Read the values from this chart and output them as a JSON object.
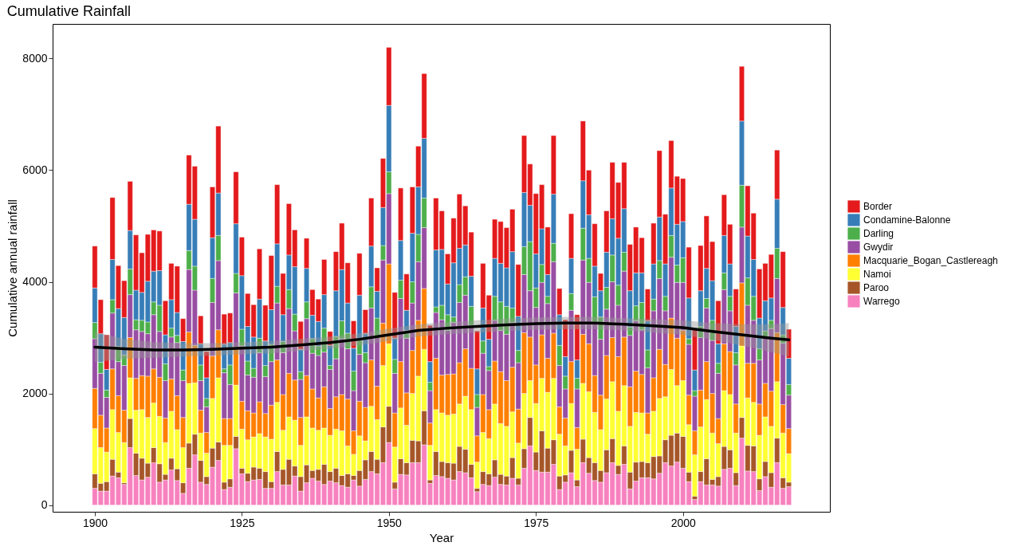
{
  "chart_data": {
    "type": "bar",
    "stacked": true,
    "title": "Cumulative Rainfall",
    "xlabel": "Year",
    "ylabel": "Cumulative annual rainfall",
    "x": [
      1900,
      1901,
      1902,
      1903,
      1904,
      1905,
      1906,
      1907,
      1908,
      1909,
      1910,
      1911,
      1912,
      1913,
      1914,
      1915,
      1916,
      1917,
      1918,
      1919,
      1920,
      1921,
      1922,
      1923,
      1924,
      1925,
      1926,
      1927,
      1928,
      1929,
      1930,
      1931,
      1932,
      1933,
      1934,
      1935,
      1936,
      1937,
      1938,
      1939,
      1940,
      1941,
      1942,
      1943,
      1944,
      1945,
      1946,
      1947,
      1948,
      1949,
      1950,
      1951,
      1952,
      1953,
      1954,
      1955,
      1956,
      1957,
      1958,
      1959,
      1960,
      1961,
      1962,
      1963,
      1964,
      1965,
      1966,
      1967,
      1968,
      1969,
      1970,
      1971,
      1972,
      1973,
      1974,
      1975,
      1976,
      1977,
      1978,
      1979,
      1980,
      1981,
      1982,
      1983,
      1984,
      1985,
      1986,
      1987,
      1988,
      1989,
      1990,
      1991,
      1992,
      1993,
      1994,
      1995,
      1996,
      1997,
      1998,
      1999,
      2000,
      2001,
      2002,
      2003,
      2004,
      2005,
      2006,
      2007,
      2008,
      2009,
      2010,
      2011,
      2012,
      2013,
      2014,
      2015,
      2016,
      2017,
      2018
    ],
    "series": [
      {
        "name": "Warrego",
        "color": "#f781bf",
        "values": [
          300,
          250,
          250,
          520,
          490,
          370,
          1030,
          530,
          450,
          500,
          760,
          410,
          450,
          630,
          440,
          210,
          660,
          900,
          410,
          370,
          680,
          800,
          280,
          320,
          1010,
          560,
          420,
          450,
          460,
          300,
          300,
          600,
          360,
          360,
          520,
          250,
          400,
          480,
          430,
          370,
          430,
          400,
          350,
          320,
          450,
          340,
          460,
          600,
          560,
          760,
          1120,
          290,
          550,
          540,
          760,
          760,
          1080,
          390,
          530,
          510,
          480,
          450,
          600,
          580,
          490,
          240,
          370,
          350,
          500,
          370,
          360,
          480,
          360,
          660,
          1060,
          620,
          590,
          590,
          730,
          280,
          410,
          580,
          330,
          760,
          570,
          440,
          410,
          580,
          760,
          550,
          730,
          290,
          430,
          490,
          490,
          470,
          570,
          760,
          700,
          770,
          660,
          420,
          100,
          420,
          360,
          360,
          340,
          640,
          660,
          350,
          1200,
          610,
          600,
          260,
          510,
          320,
          760,
          300,
          330
        ]
      },
      {
        "name": "Paroo",
        "color": "#a65628",
        "values": [
          260,
          140,
          170,
          300,
          100,
          30,
          520,
          400,
          390,
          250,
          270,
          330,
          100,
          210,
          210,
          190,
          450,
          370,
          390,
          140,
          340,
          330,
          130,
          150,
          220,
          100,
          150,
          230,
          200,
          300,
          120,
          360,
          280,
          460,
          180,
          260,
          320,
          140,
          210,
          360,
          170,
          260,
          180,
          240,
          80,
          280,
          350,
          360,
          260,
          640,
          650,
          120,
          280,
          220,
          400,
          390,
          610,
          60,
          430,
          270,
          280,
          300,
          450,
          420,
          240,
          60,
          230,
          210,
          310,
          180,
          160,
          370,
          120,
          350,
          510,
          330,
          740,
          430,
          440,
          240,
          130,
          400,
          120,
          420,
          280,
          320,
          210,
          410,
          430,
          160,
          330,
          300,
          340,
          290,
          270,
          400,
          310,
          410,
          550,
          520,
          570,
          170,
          60,
          180,
          470,
          100,
          170,
          410,
          330,
          230,
          370,
          460,
          460,
          210,
          270,
          260,
          440,
          190,
          80
        ]
      },
      {
        "name": "Namoi",
        "color": "#ffff33",
        "values": [
          810,
          640,
          530,
          890,
          710,
          720,
          730,
          770,
          870,
          820,
          800,
          850,
          570,
          840,
          700,
          630,
          1070,
          920,
          490,
          420,
          890,
          1150,
          660,
          600,
          920,
          700,
          600,
          540,
          620,
          620,
          760,
          880,
          700,
          760,
          820,
          560,
          860,
          760,
          700,
          650,
          650,
          700,
          800,
          500,
          380,
          620,
          340,
          810,
          710,
          1100,
          1120,
          630,
          910,
          670,
          840,
          1160,
          1100,
          620,
          750,
          870,
          850,
          880,
          760,
          950,
          980,
          470,
          700,
          630,
          1000,
          910,
          890,
          820,
          630,
          990,
          660,
          870,
          940,
          1000,
          1100,
          750,
          520,
          840,
          550,
          1000,
          1180,
          900,
          730,
          910,
          1020,
          970,
          1080,
          820,
          890,
          870,
          510,
          810,
          1030,
          770,
          1180,
          850,
          1000,
          850,
          740,
          800,
          1060,
          830,
          590,
          1000,
          990,
          710,
          1280,
          850,
          780,
          780,
          800,
          830,
          1010,
          800,
          510
        ]
      },
      {
        "name": "Macquarie_Bogan_Castlereagh",
        "color": "#ff7f00",
        "values": [
          720,
          580,
          430,
          730,
          660,
          580,
          720,
          570,
          610,
          740,
          610,
          700,
          440,
          580,
          610,
          540,
          920,
          670,
          410,
          370,
          760,
          860,
          480,
          480,
          680,
          500,
          520,
          430,
          570,
          420,
          610,
          760,
          640,
          780,
          720,
          500,
          740,
          700,
          580,
          740,
          480,
          580,
          650,
          840,
          420,
          620,
          600,
          830,
          600,
          760,
          1430,
          610,
          830,
          580,
          770,
          1000,
          1090,
          400,
          920,
          680,
          730,
          720,
          740,
          850,
          740,
          470,
          680,
          520,
          770,
          930,
          820,
          800,
          610,
          1090,
          780,
          690,
          780,
          610,
          810,
          490,
          500,
          750,
          390,
          880,
          860,
          660,
          620,
          780,
          790,
          980,
          870,
          710,
          740,
          690,
          380,
          600,
          880,
          580,
          920,
          850,
          900,
          530,
          430,
          660,
          680,
          710,
          450,
          840,
          770,
          520,
          1130,
          620,
          700,
          560,
          600,
          630,
          880,
          510,
          450
        ]
      },
      {
        "name": "Gwydir",
        "color": "#984ea3",
        "values": [
          890,
          750,
          550,
          1000,
          610,
          800,
          770,
          870,
          790,
          760,
          970,
          820,
          670,
          750,
          950,
          660,
          1120,
          990,
          530,
          460,
          960,
          1240,
          820,
          610,
          970,
          990,
          640,
          640,
          880,
          660,
          780,
          1020,
          750,
          1160,
          880,
          680,
          1020,
          640,
          760,
          620,
          700,
          680,
          1000,
          900,
          720,
          840,
          800,
          930,
          880,
          1130,
          1260,
          710,
          1130,
          980,
          850,
          1050,
          1090,
          580,
          820,
          990,
          790,
          920,
          1080,
          960,
          770,
          510,
          740,
          700,
          730,
          740,
          830,
          800,
          830,
          1040,
          830,
          1030,
          940,
          980,
          1280,
          740,
          520,
          920,
          690,
          1330,
          1100,
          960,
          1000,
          830,
          1000,
          920,
          1180,
          920,
          900,
          800,
          810,
          1200,
          1270,
          960,
          1090,
          1000,
          860,
          910,
          620,
          940,
          960,
          950,
          810,
          970,
          730,
          700,
          1000,
          1040,
          770,
          790,
          810,
          1120,
          970,
          1100,
          600
        ]
      },
      {
        "name": "Darling",
        "color": "#4daf4a",
        "values": [
          290,
          200,
          130,
          240,
          270,
          190,
          460,
          180,
          200,
          210,
          230,
          470,
          300,
          160,
          130,
          190,
          340,
          430,
          280,
          150,
          430,
          450,
          70,
          350,
          350,
          300,
          250,
          160,
          260,
          200,
          310,
          300,
          200,
          340,
          300,
          140,
          300,
          260,
          170,
          430,
          70,
          400,
          320,
          280,
          350,
          260,
          180,
          380,
          340,
          260,
          390,
          250,
          330,
          140,
          380,
          490,
          530,
          150,
          100,
          260,
          280,
          100,
          320,
          330,
          340,
          230,
          220,
          70,
          430,
          510,
          500,
          260,
          220,
          500,
          880,
          350,
          320,
          130,
          330,
          360,
          230,
          300,
          190,
          570,
          430,
          450,
          400,
          390,
          480,
          360,
          340,
          150,
          270,
          490,
          320,
          210,
          320,
          260,
          390,
          310,
          440,
          100,
          100,
          200,
          170,
          360,
          180,
          300,
          260,
          220,
          750,
          490,
          430,
          200,
          130,
          150,
          540,
          150,
          190
        ]
      },
      {
        "name": "Condamine-Balonne",
        "color": "#377eb8",
        "values": [
          620,
          510,
          370,
          720,
          680,
          670,
          690,
          530,
          500,
          730,
          550,
          620,
          520,
          510,
          410,
          510,
          830,
          840,
          380,
          370,
          730,
          760,
          440,
          400,
          890,
          960,
          620,
          560,
          700,
          440,
          620,
          760,
          480,
          620,
          850,
          400,
          600,
          420,
          440,
          600,
          360,
          820,
          920,
          540,
          410,
          800,
          340,
          730,
          480,
          680,
          1190,
          380,
          710,
          360,
          870,
          850,
          1070,
          370,
          1020,
          1000,
          550,
          970,
          650,
          570,
          540,
          460,
          590,
          490,
          680,
          690,
          690,
          1010,
          610,
          970,
          650,
          610,
          640,
          390,
          880,
          550,
          350,
          630,
          330,
          850,
          780,
          550,
          470,
          630,
          650,
          840,
          780,
          650,
          590,
          530,
          520,
          630,
          780,
          580,
          850,
          730,
          650,
          730,
          370,
          640,
          540,
          710,
          350,
          670,
          580,
          470,
          1150,
          750,
          660,
          550,
          540,
          400,
          880,
          490,
          470
        ]
      },
      {
        "name": "Border",
        "color": "#e41a1c",
        "values": [
          750,
          610,
          620,
          1110,
          770,
          660,
          880,
          990,
          710,
          840,
          740,
          710,
          610,
          650,
          830,
          410,
          880,
          950,
          500,
          470,
          910,
          1200,
          540,
          530,
          930,
          690,
          590,
          580,
          900,
          640,
          970,
          1060,
          740,
          920,
          660,
          500,
          540,
          460,
          400,
          630,
          250,
          700,
          830,
          720,
          490,
          750,
          430,
          860,
          420,
          880,
          1040,
          820,
          940,
          650,
          830,
          730,
          1160,
          650,
          930,
          690,
          540,
          800,
          970,
          700,
          790,
          680,
          800,
          790,
          700,
          750,
          720,
          760,
          930,
          1020,
          740,
          1080,
          790,
          850,
          1050,
          470,
          660,
          800,
          810,
          1070,
          800,
          760,
          310,
          740,
          1010,
          1000,
          830,
          830,
          820,
          630,
          570,
          730,
          1190,
          890,
          850,
          860,
          770,
          910,
          720,
          810,
          940,
          700,
          770,
          730,
          710,
          670,
          980,
          900,
          830,
          880,
          670,
          780,
          880,
          1000,
          520
        ]
      },
      {
        "type": "line",
        "color": "#000000",
        "x": [
          1900,
          1905,
          1910,
          1915,
          1920,
          1925,
          1930,
          1935,
          1940,
          1945,
          1950,
          1955,
          1960,
          1965,
          1970,
          1975,
          1980,
          1985,
          1990,
          1995,
          2000,
          2005,
          2010,
          2015,
          2018
        ],
        "values": [
          2830,
          2800,
          2780,
          2780,
          2790,
          2810,
          2830,
          2870,
          2910,
          2970,
          3050,
          3130,
          3170,
          3200,
          3230,
          3250,
          3260,
          3260,
          3240,
          3210,
          3180,
          3110,
          3050,
          2990,
          2960
        ],
        "lower": [
          2560,
          2620,
          2640,
          2660,
          2680,
          2700,
          2720,
          2760,
          2800,
          2860,
          2940,
          3020,
          3060,
          3090,
          3120,
          3140,
          3150,
          3150,
          3130,
          3090,
          3050,
          2960,
          2860,
          2740,
          2660
        ],
        "upper": [
          3100,
          2980,
          2920,
          2900,
          2900,
          2920,
          2940,
          2980,
          3020,
          3080,
          3160,
          3240,
          3280,
          3310,
          3340,
          3360,
          3370,
          3370,
          3350,
          3330,
          3310,
          3260,
          3240,
          3240,
          3260
        ]
      }
    ],
    "xlim": [
      1893.5,
      2024.3
    ],
    "xticks": [
      1900,
      1925,
      1950,
      1975,
      2000
    ],
    "ylim": [
      -120,
      8620
    ],
    "yticks": [
      0,
      2000,
      4000,
      6000,
      8000
    ],
    "grid": false,
    "legend": "right"
  }
}
